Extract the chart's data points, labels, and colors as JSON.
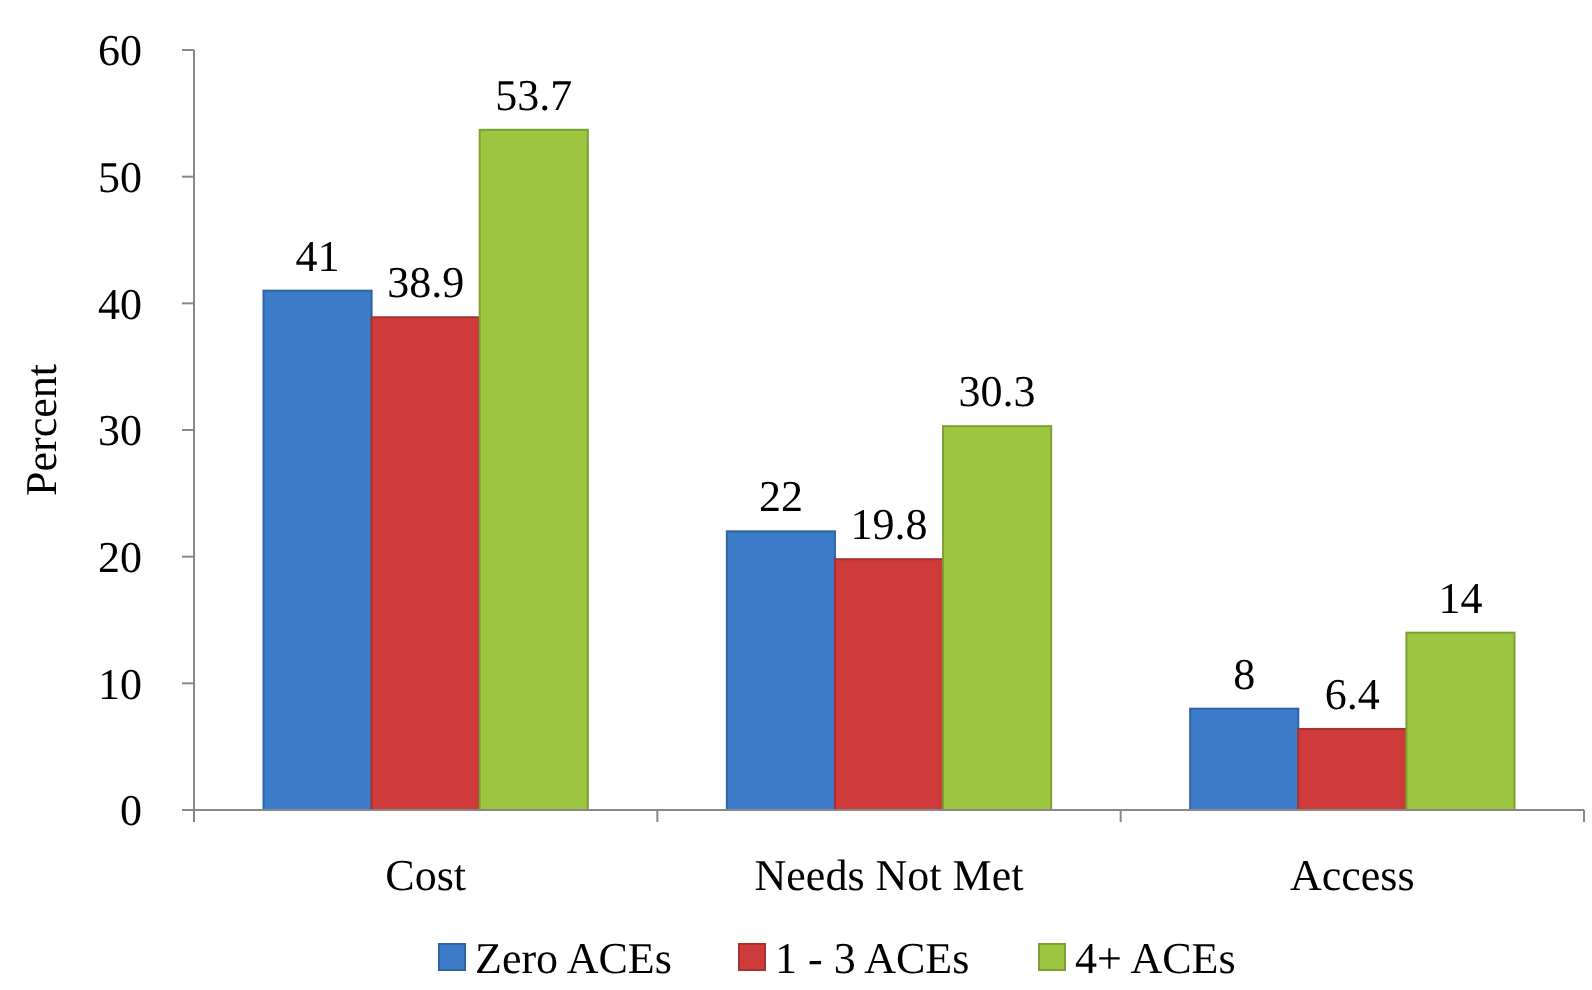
{
  "chart_data": {
    "type": "bar",
    "ylabel": "Percent",
    "categories": [
      "Cost",
      "Needs Not Met",
      "Access"
    ],
    "series": [
      {
        "name": "Zero ACEs",
        "color": "#3d7cc9",
        "values": [
          41,
          22,
          8
        ]
      },
      {
        "name": "1 - 3 ACEs",
        "color": "#cf3b3b",
        "values": [
          38.9,
          19.8,
          6.4
        ]
      },
      {
        "name": "4+ ACEs",
        "color": "#9cc63f",
        "values": [
          53.7,
          30.3,
          14
        ]
      }
    ],
    "ylim": [
      0,
      60
    ],
    "yticks": [
      0,
      10,
      20,
      30,
      40,
      50,
      60
    ],
    "data_labels": true,
    "legend": "bottom",
    "grid": false
  }
}
